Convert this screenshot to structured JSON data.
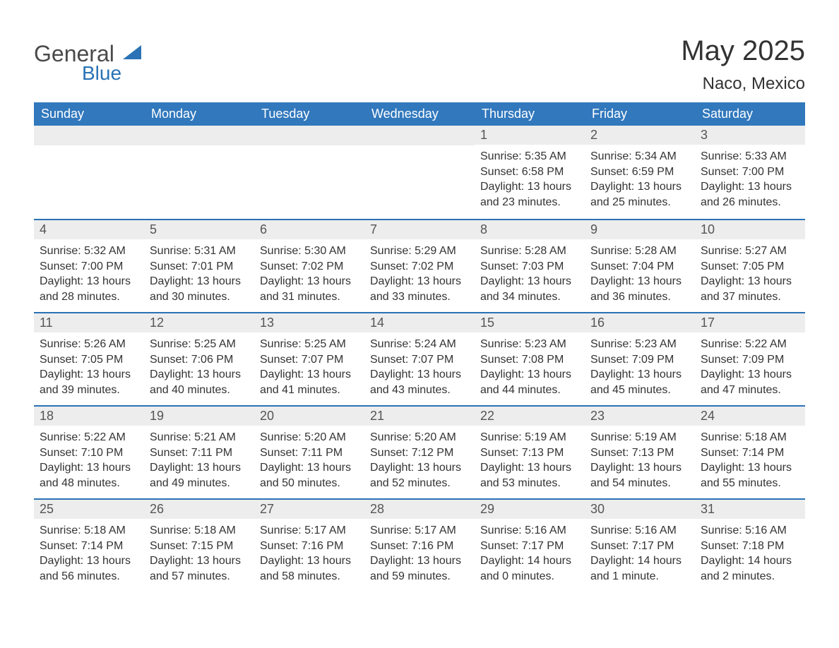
{
  "brand": {
    "name": "General",
    "sub": "Blue"
  },
  "title": "May 2025",
  "location": "Naco, Mexico",
  "colors": {
    "header_bg": "#3178bd",
    "header_text": "#ffffff",
    "accent": "#2a72b5",
    "daybar_bg": "#ededed",
    "text": "#333333"
  },
  "weekdays": [
    "Sunday",
    "Monday",
    "Tuesday",
    "Wednesday",
    "Thursday",
    "Friday",
    "Saturday"
  ],
  "labels": {
    "sunrise": "Sunrise:",
    "sunset": "Sunset:",
    "daylight": "Daylight:"
  },
  "weeks": [
    [
      null,
      null,
      null,
      null,
      {
        "n": "1",
        "sunrise": "5:35 AM",
        "sunset": "6:58 PM",
        "daylight": "13 hours and 23 minutes."
      },
      {
        "n": "2",
        "sunrise": "5:34 AM",
        "sunset": "6:59 PM",
        "daylight": "13 hours and 25 minutes."
      },
      {
        "n": "3",
        "sunrise": "5:33 AM",
        "sunset": "7:00 PM",
        "daylight": "13 hours and 26 minutes."
      }
    ],
    [
      {
        "n": "4",
        "sunrise": "5:32 AM",
        "sunset": "7:00 PM",
        "daylight": "13 hours and 28 minutes."
      },
      {
        "n": "5",
        "sunrise": "5:31 AM",
        "sunset": "7:01 PM",
        "daylight": "13 hours and 30 minutes."
      },
      {
        "n": "6",
        "sunrise": "5:30 AM",
        "sunset": "7:02 PM",
        "daylight": "13 hours and 31 minutes."
      },
      {
        "n": "7",
        "sunrise": "5:29 AM",
        "sunset": "7:02 PM",
        "daylight": "13 hours and 33 minutes."
      },
      {
        "n": "8",
        "sunrise": "5:28 AM",
        "sunset": "7:03 PM",
        "daylight": "13 hours and 34 minutes."
      },
      {
        "n": "9",
        "sunrise": "5:28 AM",
        "sunset": "7:04 PM",
        "daylight": "13 hours and 36 minutes."
      },
      {
        "n": "10",
        "sunrise": "5:27 AM",
        "sunset": "7:05 PM",
        "daylight": "13 hours and 37 minutes."
      }
    ],
    [
      {
        "n": "11",
        "sunrise": "5:26 AM",
        "sunset": "7:05 PM",
        "daylight": "13 hours and 39 minutes."
      },
      {
        "n": "12",
        "sunrise": "5:25 AM",
        "sunset": "7:06 PM",
        "daylight": "13 hours and 40 minutes."
      },
      {
        "n": "13",
        "sunrise": "5:25 AM",
        "sunset": "7:07 PM",
        "daylight": "13 hours and 41 minutes."
      },
      {
        "n": "14",
        "sunrise": "5:24 AM",
        "sunset": "7:07 PM",
        "daylight": "13 hours and 43 minutes."
      },
      {
        "n": "15",
        "sunrise": "5:23 AM",
        "sunset": "7:08 PM",
        "daylight": "13 hours and 44 minutes."
      },
      {
        "n": "16",
        "sunrise": "5:23 AM",
        "sunset": "7:09 PM",
        "daylight": "13 hours and 45 minutes."
      },
      {
        "n": "17",
        "sunrise": "5:22 AM",
        "sunset": "7:09 PM",
        "daylight": "13 hours and 47 minutes."
      }
    ],
    [
      {
        "n": "18",
        "sunrise": "5:22 AM",
        "sunset": "7:10 PM",
        "daylight": "13 hours and 48 minutes."
      },
      {
        "n": "19",
        "sunrise": "5:21 AM",
        "sunset": "7:11 PM",
        "daylight": "13 hours and 49 minutes."
      },
      {
        "n": "20",
        "sunrise": "5:20 AM",
        "sunset": "7:11 PM",
        "daylight": "13 hours and 50 minutes."
      },
      {
        "n": "21",
        "sunrise": "5:20 AM",
        "sunset": "7:12 PM",
        "daylight": "13 hours and 52 minutes."
      },
      {
        "n": "22",
        "sunrise": "5:19 AM",
        "sunset": "7:13 PM",
        "daylight": "13 hours and 53 minutes."
      },
      {
        "n": "23",
        "sunrise": "5:19 AM",
        "sunset": "7:13 PM",
        "daylight": "13 hours and 54 minutes."
      },
      {
        "n": "24",
        "sunrise": "5:18 AM",
        "sunset": "7:14 PM",
        "daylight": "13 hours and 55 minutes."
      }
    ],
    [
      {
        "n": "25",
        "sunrise": "5:18 AM",
        "sunset": "7:14 PM",
        "daylight": "13 hours and 56 minutes."
      },
      {
        "n": "26",
        "sunrise": "5:18 AM",
        "sunset": "7:15 PM",
        "daylight": "13 hours and 57 minutes."
      },
      {
        "n": "27",
        "sunrise": "5:17 AM",
        "sunset": "7:16 PM",
        "daylight": "13 hours and 58 minutes."
      },
      {
        "n": "28",
        "sunrise": "5:17 AM",
        "sunset": "7:16 PM",
        "daylight": "13 hours and 59 minutes."
      },
      {
        "n": "29",
        "sunrise": "5:16 AM",
        "sunset": "7:17 PM",
        "daylight": "14 hours and 0 minutes."
      },
      {
        "n": "30",
        "sunrise": "5:16 AM",
        "sunset": "7:17 PM",
        "daylight": "14 hours and 1 minute."
      },
      {
        "n": "31",
        "sunrise": "5:16 AM",
        "sunset": "7:18 PM",
        "daylight": "14 hours and 2 minutes."
      }
    ]
  ]
}
